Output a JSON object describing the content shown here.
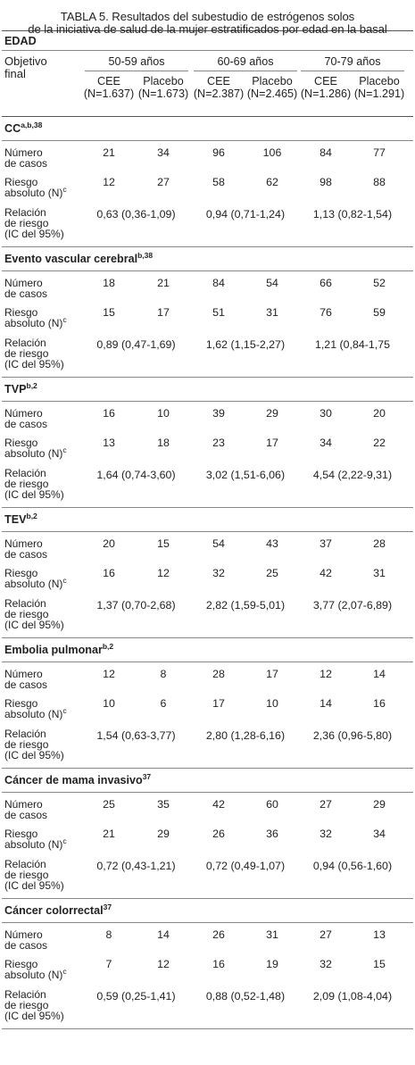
{
  "title_line1": "TABLA 5. Resultados del subestudio de estrógenos solos",
  "title_line2": "de la iniciativa de salud de la mujer estratificados por edad en la basal",
  "edad_label": "EDAD",
  "objetivo_label_1": "Objetivo",
  "objetivo_label_2": "final",
  "age_groups": [
    "50-59 años",
    "60-69 años",
    "70-79 años"
  ],
  "arms": [
    {
      "name": "CEE",
      "n": "(N=1.637)"
    },
    {
      "name": "Placebo",
      "n": "(N=1.673)"
    },
    {
      "name": "CEE",
      "n": "(N=2.387)"
    },
    {
      "name": "Placebo",
      "n": "(N=2.465)"
    },
    {
      "name": "CEE",
      "n": "(N=1.286)"
    },
    {
      "name": "Placebo",
      "n": "(N=1.291)"
    }
  ],
  "row_labels": {
    "casos": [
      "Número",
      "de casos"
    ],
    "riesgo": [
      "Riesgo",
      "absoluto (N)"
    ],
    "riesgo_sup": "c",
    "relacion": [
      "Relación",
      "de riesgo",
      "(IC del 95%)"
    ]
  },
  "sections": [
    {
      "name": "CC",
      "sup": "a,b,38",
      "casos": [
        "21",
        "34",
        "96",
        "106",
        "84",
        "77"
      ],
      "riesgo": [
        "12",
        "27",
        "58",
        "62",
        "98",
        "88"
      ],
      "rel": [
        "0,63 (0,36-1,09)",
        "0,94 (0,71-1,24)",
        "1,13 (0,82-1,54)"
      ]
    },
    {
      "name": "Evento vascular cerebral",
      "sup": "b,38",
      "casos": [
        "18",
        "21",
        "84",
        "54",
        "66",
        "52"
      ],
      "riesgo": [
        "15",
        "17",
        "51",
        "31",
        "76",
        "59"
      ],
      "rel": [
        "0,89 (0,47-1,69)",
        "1,62 (1,15-2,27)",
        "1,21 (0,84-1,75"
      ]
    },
    {
      "name": "TVP",
      "sup": "b,2",
      "casos": [
        "16",
        "10",
        "39",
        "29",
        "30",
        "20"
      ],
      "riesgo": [
        "13",
        "18",
        "23",
        "17",
        "34",
        "22"
      ],
      "rel": [
        "1,64 (0,74-3,60)",
        "3,02 (1,51-6,06)",
        "4,54 (2,22-9,31)"
      ]
    },
    {
      "name": "TEV",
      "sup": "b,2",
      "casos": [
        "20",
        "15",
        "54",
        "43",
        "37",
        "28"
      ],
      "riesgo": [
        "16",
        "12",
        "32",
        "25",
        "42",
        "31"
      ],
      "rel": [
        "1,37 (0,70-2,68)",
        "2,82 (1,59-5,01)",
        "3,77 (2,07-6,89)"
      ]
    },
    {
      "name": "Embolia pulmonar",
      "sup": "b,2",
      "casos": [
        "12",
        "8",
        "28",
        "17",
        "12",
        "14"
      ],
      "riesgo": [
        "10",
        "6",
        "17",
        "10",
        "14",
        "16"
      ],
      "rel": [
        "1,54 (0,63-3,77)",
        "2,80 (1,28-6,16)",
        "2,36 (0,96-5,80)"
      ]
    },
    {
      "name": "Cáncer de mama invasivo",
      "sup": "37",
      "casos": [
        "25",
        "35",
        "42",
        "60",
        "27",
        "29"
      ],
      "riesgo": [
        "21",
        "29",
        "26",
        "36",
        "32",
        "34"
      ],
      "rel": [
        "0,72 (0,43-1,21)",
        "0,72 (0,49-1,07)",
        "0,94 (0,56-1,60)"
      ]
    },
    {
      "name": "Cáncer colorrectal",
      "sup": "37",
      "casos": [
        "8",
        "14",
        "26",
        "31",
        "27",
        "13"
      ],
      "riesgo": [
        "7",
        "12",
        "16",
        "19",
        "32",
        "15"
      ],
      "rel": [
        "0,59 (0,25-1,41)",
        "0,88 (0,52-1,48)",
        "2,09 (1,08-4,04)"
      ]
    }
  ]
}
